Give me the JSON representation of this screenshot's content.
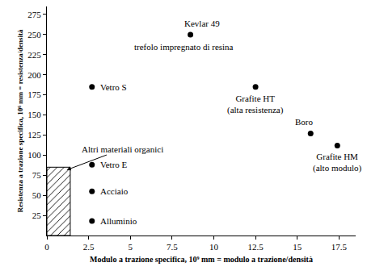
{
  "chart_data": {
    "type": "scatter",
    "x_label": "Modulo a trazione specifica, 10⁹ mm = modulo a trazione/densità",
    "y_label": "Resistenza a trazione specifica, 10⁶ mm = resistenza/densità",
    "x": [
      8.6,
      2.7,
      2.7,
      2.7,
      2.7,
      12.5,
      15.8,
      17.4
    ],
    "values": [
      250,
      185,
      88,
      55,
      18,
      185,
      127,
      112
    ],
    "point_labels": [
      [
        "Kevlar 49",
        "trefolo impregnato di resina"
      ],
      [
        "Vetro S"
      ],
      [
        "Vetro E"
      ],
      [
        "Acciaio"
      ],
      [
        "Alluminio"
      ],
      [
        "Grafite HT",
        "(alta resistenza)"
      ],
      [
        "Boro"
      ],
      [
        "Grafite HM",
        "(alto modulo)"
      ]
    ],
    "color": "#000000",
    "marker": "circle",
    "grid": false,
    "xlim": [
      0,
      18.5
    ],
    "xticks": [
      0,
      2.5,
      5,
      7.5,
      10,
      12.5,
      15,
      17.5
    ],
    "ylim": [
      0,
      285
    ],
    "yticks": [
      25,
      50,
      75,
      100,
      125,
      150,
      175,
      200,
      225,
      250,
      275
    ],
    "regions": [
      {
        "label": "Altri materiali organici",
        "x": [
          0,
          1.4
        ],
        "y": [
          0,
          85
        ]
      }
    ]
  }
}
